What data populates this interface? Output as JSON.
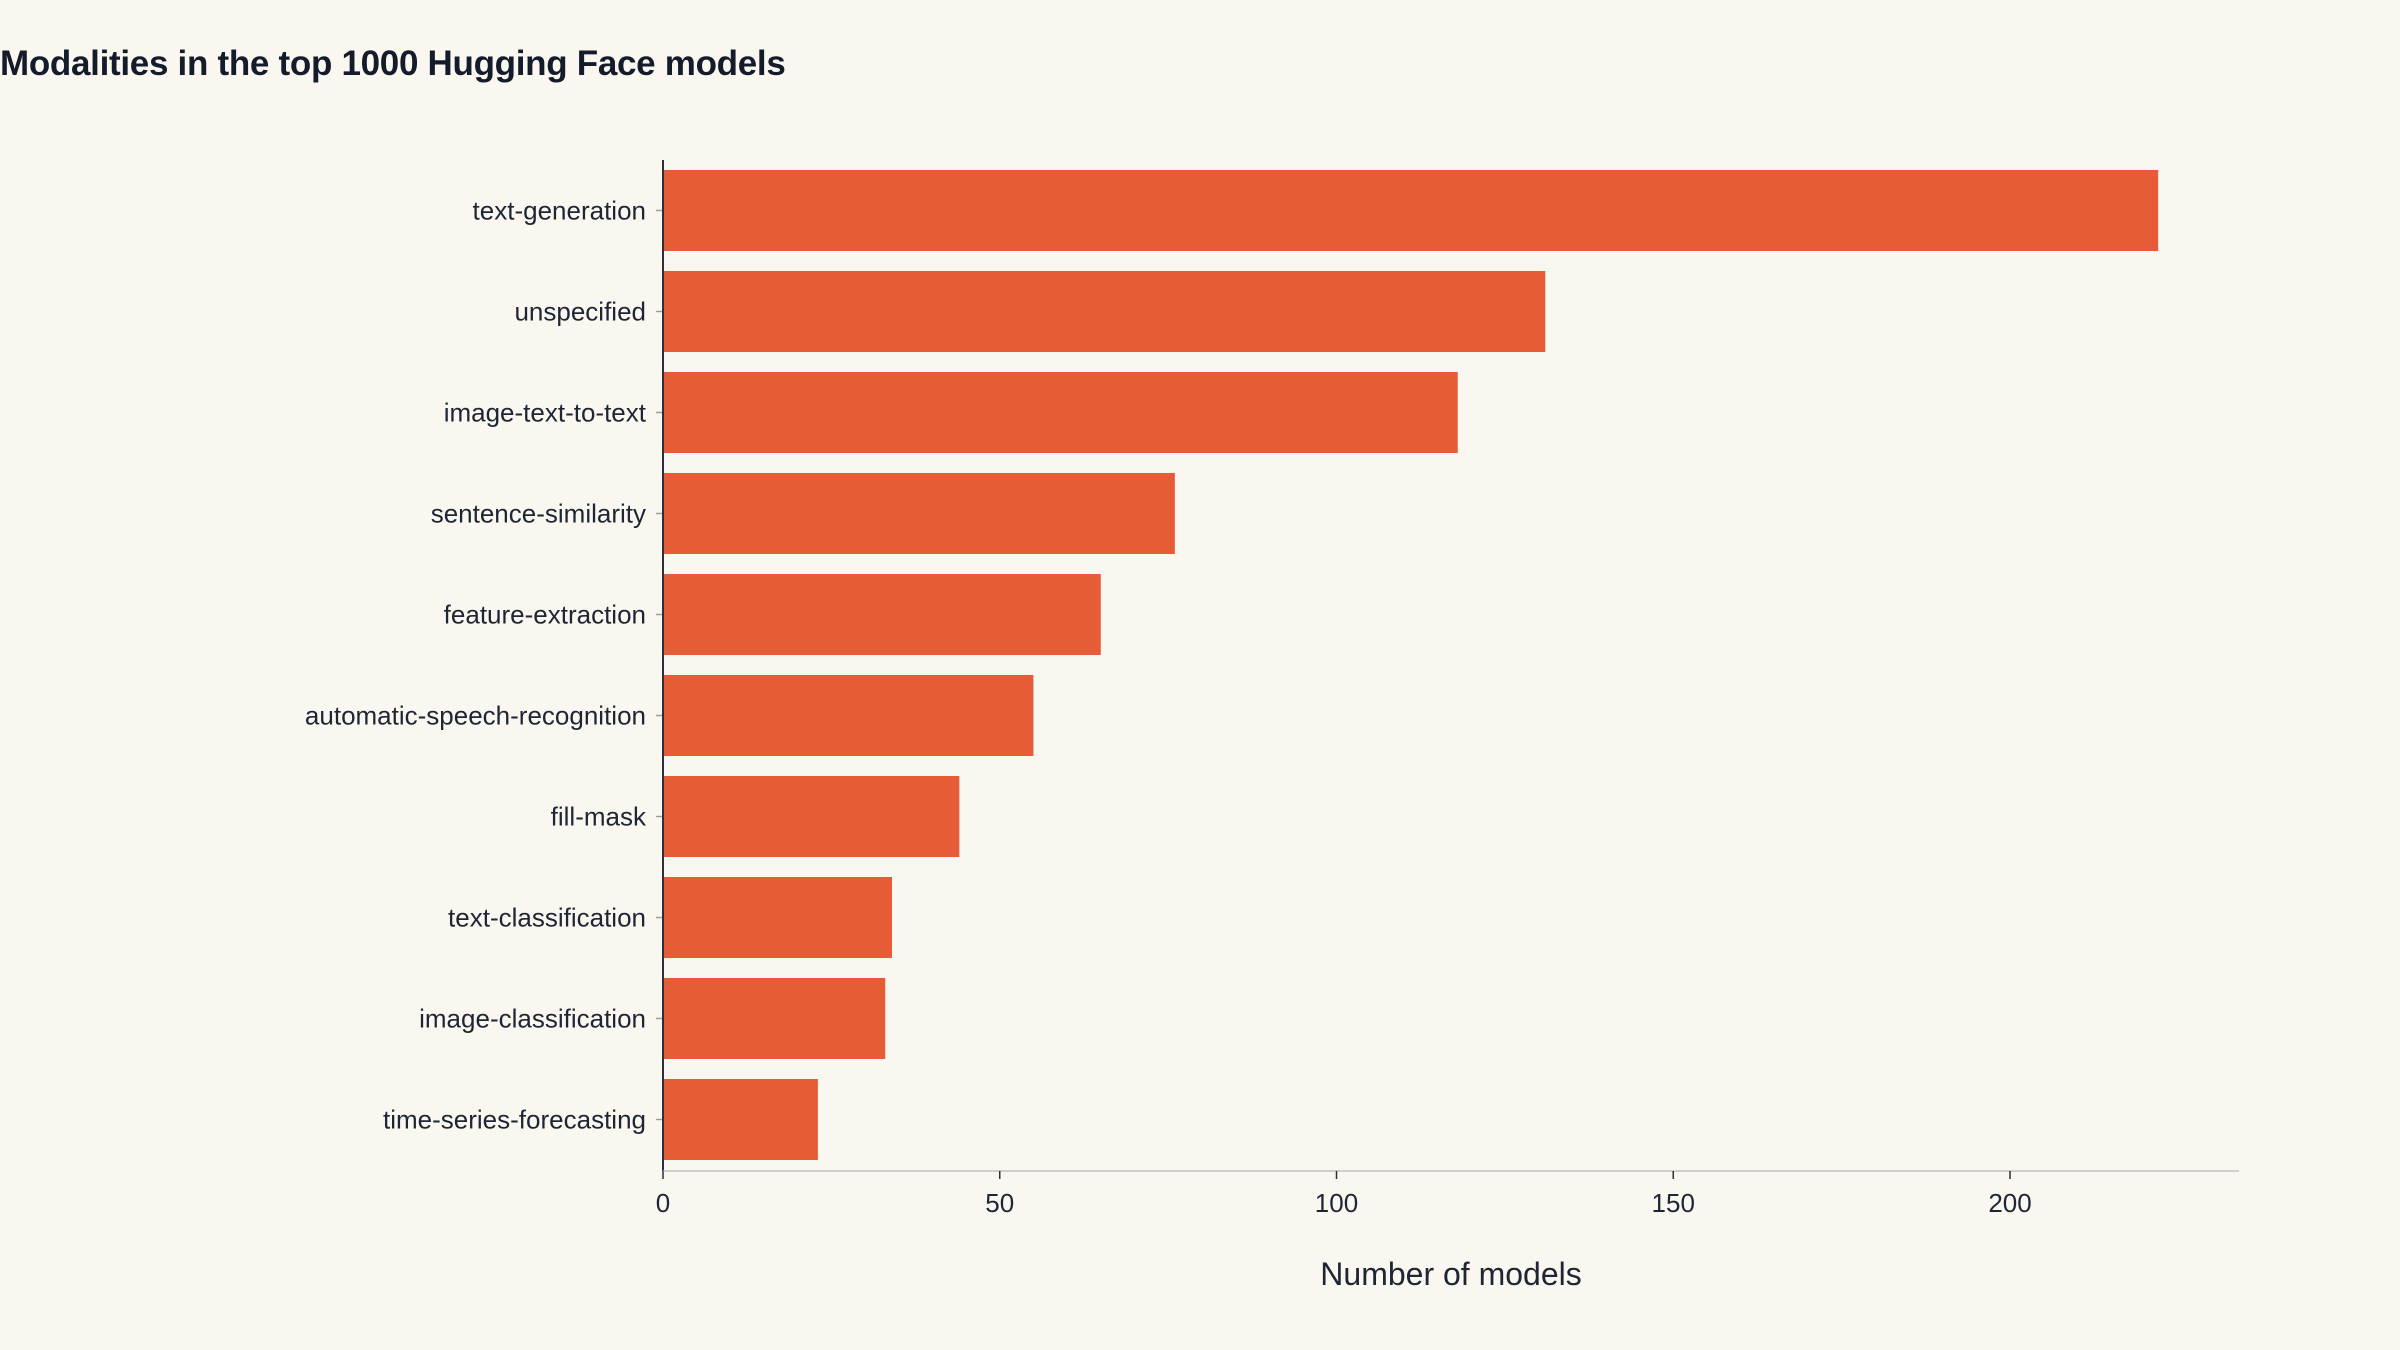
{
  "chart_data": {
    "type": "bar",
    "orientation": "horizontal",
    "title": "Modalities in the top 1000 Hugging Face models",
    "xlabel": "Number of models",
    "ylabel": "",
    "categories": [
      "text-generation",
      "unspecified",
      "image-text-to-text",
      "sentence-similarity",
      "feature-extraction",
      "automatic-speech-recognition",
      "fill-mask",
      "text-classification",
      "image-classification",
      "time-series-forecasting"
    ],
    "values": [
      222,
      131,
      118,
      76,
      65,
      55,
      44,
      34,
      33,
      23
    ],
    "xlim": [
      0,
      234
    ],
    "xticks": [
      0,
      50,
      100,
      150,
      200
    ],
    "grid": false,
    "legend": "none",
    "bar_color": "#e55c37"
  }
}
